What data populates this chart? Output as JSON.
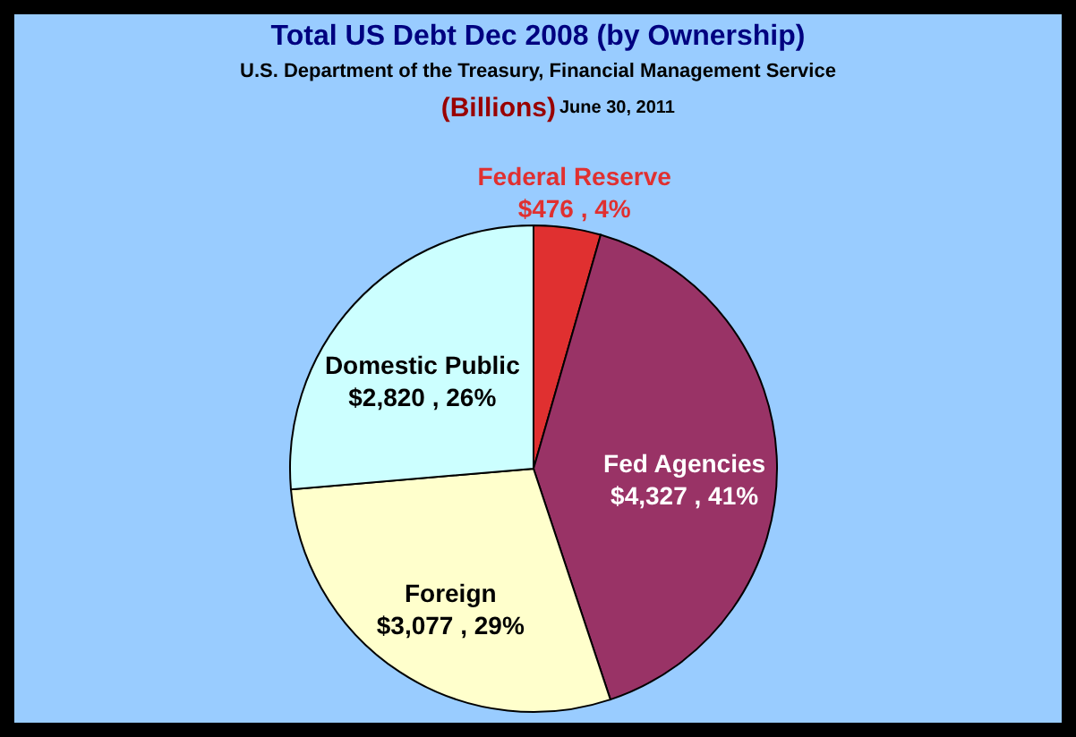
{
  "chart_data": {
    "type": "pie",
    "title": "Total US Debt Dec 2008 (by Ownership)",
    "subtitle": "U.S. Department of the Treasury, Financial Management Service",
    "annotations": [
      "(Billions)",
      "June 30, 2011"
    ],
    "categories": [
      "Federal Reserve",
      "Fed Agencies",
      "Foreign",
      "Domestic Public"
    ],
    "values": [
      476,
      4327,
      3077,
      2820
    ],
    "value_labels": [
      "$476 , 4%",
      "$4,327 , 41%",
      "$3,077 , 29%",
      "$2,820 , 26%"
    ],
    "colors": [
      "#e03030",
      "#993366",
      "#ffffcc",
      "#ccffff"
    ]
  }
}
